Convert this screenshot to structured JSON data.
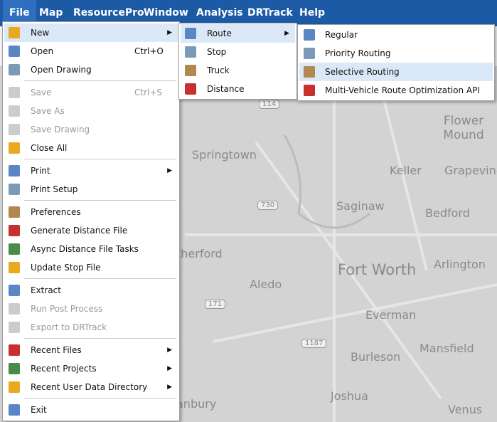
{
  "menu_bar": [
    "File",
    "Map",
    "ResourcePro",
    "Window",
    "Analysis",
    "DRTrack",
    "Help"
  ],
  "file_menu": {
    "groups": [
      [
        {
          "label": "New",
          "submenu": true,
          "highlighted": true
        },
        {
          "label": "Open",
          "shortcut": "Ctrl+O"
        },
        {
          "label": "Open Drawing"
        }
      ],
      [
        {
          "label": "Save",
          "shortcut": "Ctrl+S",
          "disabled": true
        },
        {
          "label": "Save As",
          "disabled": true
        },
        {
          "label": "Save Drawing",
          "disabled": true
        },
        {
          "label": "Close All"
        }
      ],
      [
        {
          "label": "Print",
          "submenu": true
        },
        {
          "label": "Print Setup"
        }
      ],
      [
        {
          "label": "Preferences"
        },
        {
          "label": "Generate Distance File"
        },
        {
          "label": "Async Distance File Tasks"
        },
        {
          "label": "Update Stop File"
        }
      ],
      [
        {
          "label": "Extract"
        },
        {
          "label": "Run Post Process",
          "disabled": true
        },
        {
          "label": "Export to DRTrack",
          "disabled": true
        }
      ],
      [
        {
          "label": "Recent Files",
          "submenu": true
        },
        {
          "label": "Recent Projects",
          "submenu": true
        },
        {
          "label": "Recent User Data Directory",
          "submenu": true
        }
      ],
      [
        {
          "label": "Exit"
        }
      ]
    ]
  },
  "new_menu": {
    "items": [
      {
        "label": "Route",
        "submenu": true,
        "highlighted": true
      },
      {
        "label": "Stop"
      },
      {
        "label": "Truck"
      },
      {
        "label": "Distance"
      }
    ]
  },
  "route_menu": {
    "items": [
      {
        "label": "Regular"
      },
      {
        "label": "Priority Routing"
      },
      {
        "label": "Selective Routing",
        "highlighted": true
      },
      {
        "label": "Multi-Vehicle Route Optimization API"
      }
    ]
  },
  "map": {
    "places": [
      "Flower Mound",
      "Springtown",
      "Keller",
      "Grapevine",
      "Saginaw",
      "Bedford",
      "therford",
      "Fort Worth",
      "Arlington",
      "Aledo",
      "Everman",
      "Mansfield",
      "Burleson",
      "Joshua",
      "Venus",
      "anbury"
    ],
    "road_shields": [
      "114",
      "730",
      "171",
      "1187"
    ]
  }
}
